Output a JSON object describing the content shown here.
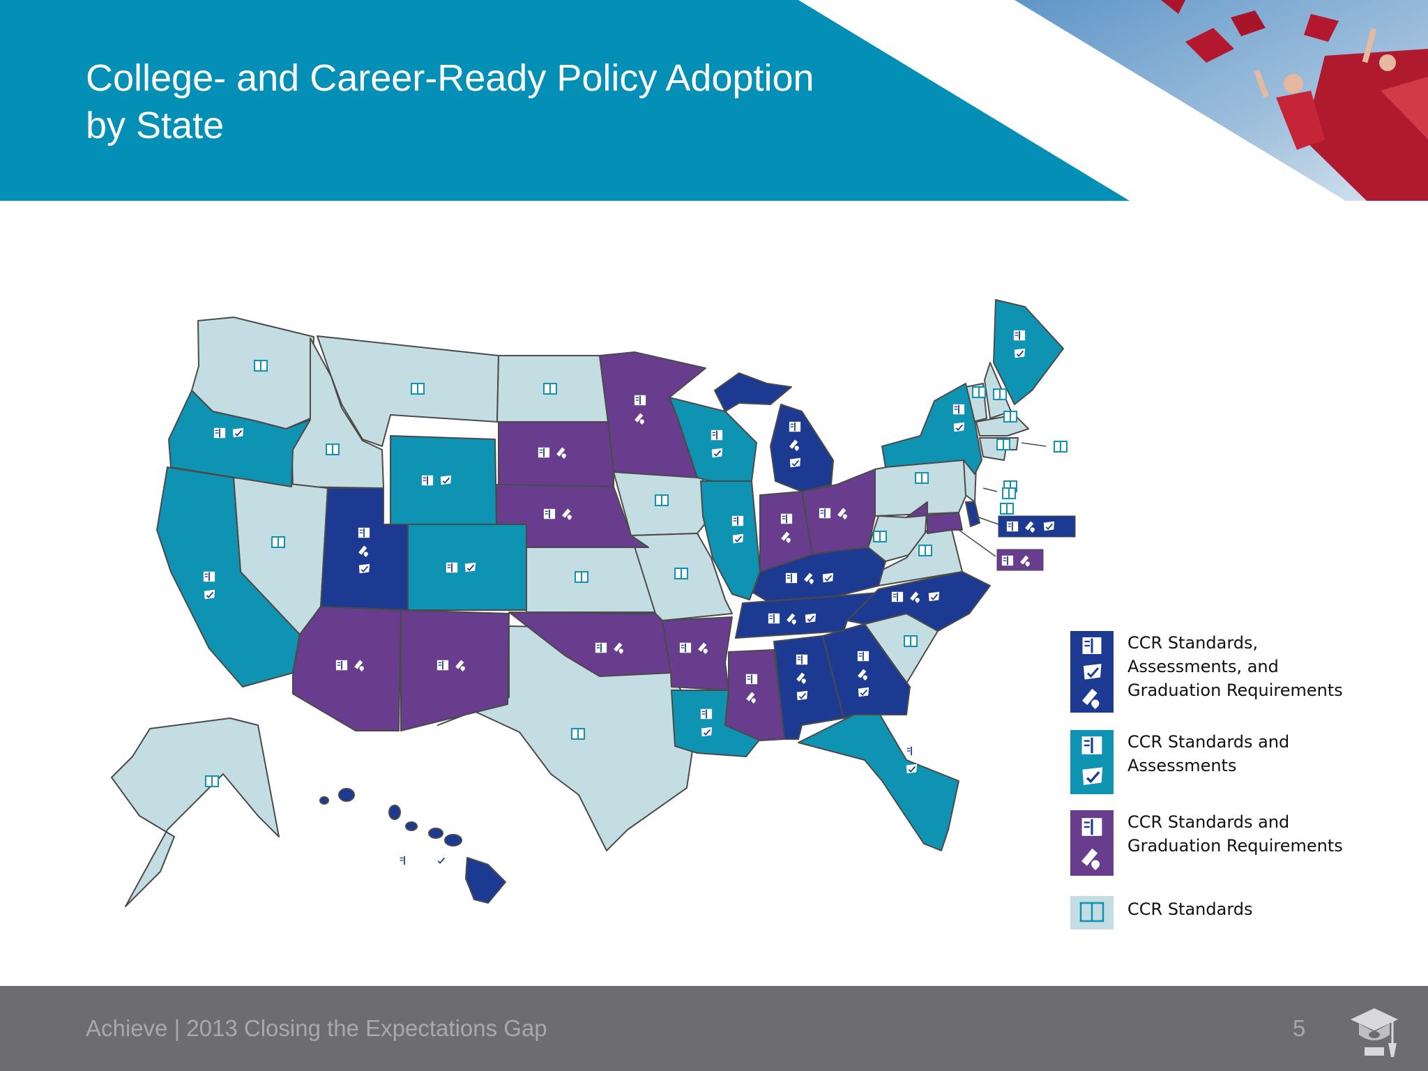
{
  "title": "College- and Career-Ready Policy Adoption by State",
  "title_lines": [
    "College- and Career-Ready Policy Adoption",
    "by State"
  ],
  "colors": {
    "header": "#0490b6",
    "all_three": "#1c3a92",
    "standards_assessments": "#0e94b2",
    "standards_graduation": "#693d8d",
    "standards_only": "#c4dde2",
    "footer": "#6d6c70"
  },
  "legend": [
    {
      "key": "all_three",
      "label_lines": [
        "CCR Standards,",
        "Assessments, and",
        "Graduation Requirements"
      ],
      "icons": [
        "book-icon",
        "monitor-check-icon",
        "diploma-icon"
      ]
    },
    {
      "key": "standards_assessments",
      "label_lines": [
        "CCR Standards and",
        "Assessments"
      ],
      "icons": [
        "book-icon",
        "monitor-check-icon"
      ]
    },
    {
      "key": "standards_graduation",
      "label_lines": [
        "CCR Standards and",
        "Graduation Requirements"
      ],
      "icons": [
        "book-icon",
        "diploma-icon"
      ]
    },
    {
      "key": "standards_only",
      "label_lines": [
        "CCR Standards"
      ],
      "icons": [
        "book-icon"
      ]
    }
  ],
  "states": {
    "all_three": [
      "Michigan",
      "Utah",
      "Kentucky",
      "Tennessee",
      "North Carolina",
      "Alabama",
      "Georgia",
      "Hawaii",
      "Delaware"
    ],
    "standards_assessments": [
      "Oregon",
      "California",
      "Wyoming",
      "Colorado",
      "Wisconsin",
      "Illinois",
      "Louisiana",
      "Florida",
      "New York",
      "Maine"
    ],
    "standards_graduation": [
      "Minnesota",
      "South Dakota",
      "Nebraska",
      "Arizona",
      "New Mexico",
      "Oklahoma",
      "Arkansas",
      "Mississippi",
      "Indiana",
      "Ohio",
      "Maryland"
    ],
    "standards_only": [
      "Washington",
      "Montana",
      "Idaho",
      "Nevada",
      "North Dakota",
      "Iowa",
      "Kansas",
      "Missouri",
      "Texas",
      "Alaska",
      "Pennsylvania",
      "West Virginia",
      "Virginia",
      "South Carolina",
      "Vermont",
      "New Hampshire",
      "Massachusetts",
      "Connecticut",
      "Rhode Island",
      "New Jersey"
    ]
  },
  "footer": {
    "text": "Achieve | 2013 Closing the Expectations Gap",
    "page": "5",
    "logo_icon": "graduation-cap-logo-icon"
  },
  "header_photo_icon": "graduation-caps-photo"
}
